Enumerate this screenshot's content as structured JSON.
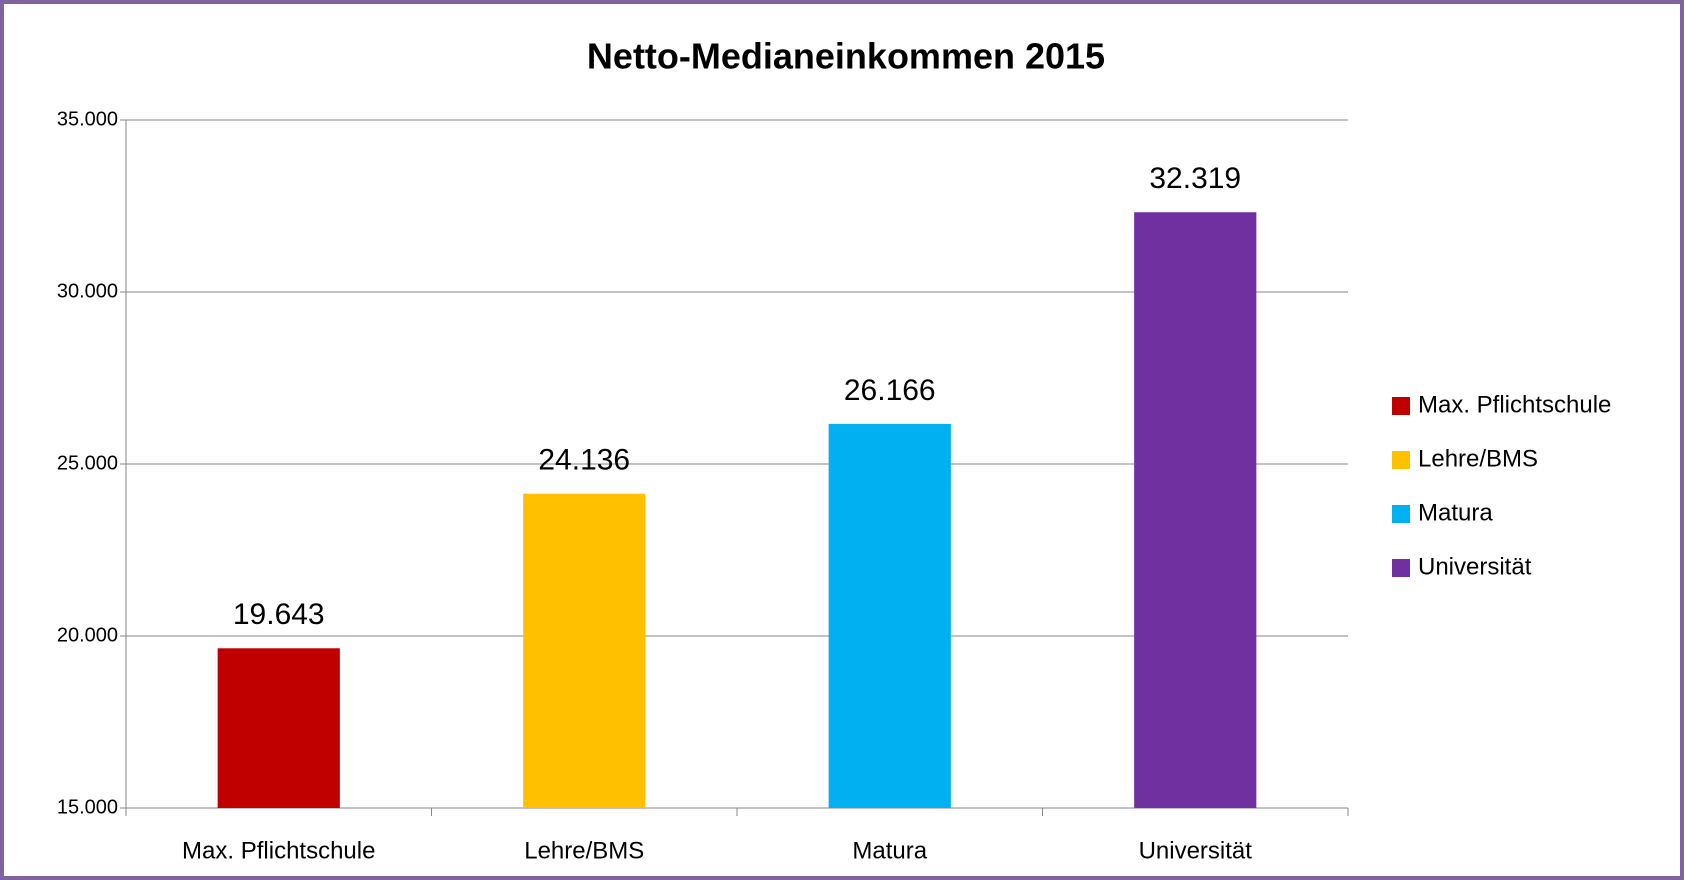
{
  "chart_data": {
    "type": "bar",
    "title": "Netto-Medianeinkommen 2015",
    "categories": [
      "Max. Pflichtschule",
      "Lehre/BMS",
      "Matura",
      "Universität"
    ],
    "values": [
      19643,
      24136,
      26166,
      32319
    ],
    "value_labels": [
      "19.643",
      "24.136",
      "26.166",
      "32.319"
    ],
    "colors": [
      "#c00000",
      "#ffc000",
      "#00b0f0",
      "#7030a0"
    ],
    "ylim": [
      15000,
      35000
    ],
    "yticks": [
      {
        "value": 15000,
        "label": "15.000"
      },
      {
        "value": 20000,
        "label": "20.000"
      },
      {
        "value": 25000,
        "label": "25.000"
      },
      {
        "value": 30000,
        "label": "30.000"
      },
      {
        "value": 35000,
        "label": "35.000"
      }
    ],
    "grid": true,
    "legend": "right"
  }
}
